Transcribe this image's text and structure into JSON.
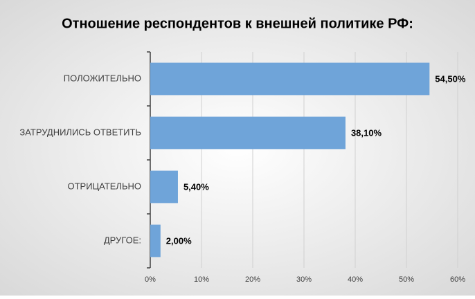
{
  "chart_data": {
    "type": "bar",
    "title": "Отношение респондентов к внешней политике РФ:",
    "categories": [
      "ПОЛОЖИТЕЛЬНО",
      "ЗАТРУДНИЛИСЬ ОТВЕТИТЬ",
      "ОТРИЦАТЕЛЬНО",
      "ДРУГОЕ:"
    ],
    "values": [
      54.5,
      38.1,
      5.4,
      2.0
    ],
    "value_labels": [
      "54,50%",
      "38,10%",
      "5,40%",
      "2,00%"
    ],
    "color": "#6fa4d9",
    "xlim": [
      0,
      60
    ],
    "xticks": [
      {
        "value": 0,
        "label": "0%"
      },
      {
        "value": 10,
        "label": "10%"
      },
      {
        "value": 20,
        "label": "20%"
      },
      {
        "value": 30,
        "label": "30%"
      },
      {
        "value": 40,
        "label": "40%"
      },
      {
        "value": 50,
        "label": "50%"
      },
      {
        "value": 60,
        "label": "60%"
      }
    ],
    "grid": true
  }
}
